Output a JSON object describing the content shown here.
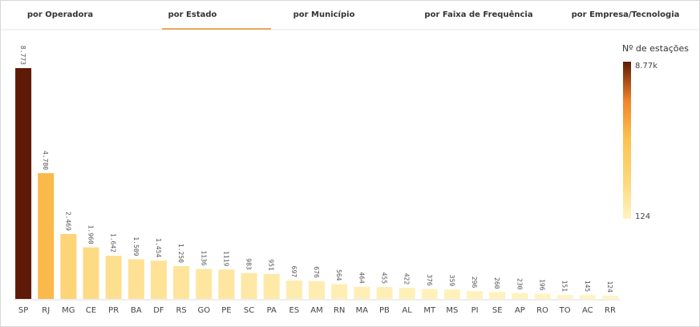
{
  "tabs": [
    "por Operadora",
    "por Estado",
    "por Município",
    "por Faixa de Frequência",
    "por Empresa/Tecnologia"
  ],
  "active_tab": 1,
  "chart_data": {
    "type": "bar",
    "categories": [
      "SP",
      "RJ",
      "MG",
      "CE",
      "PR",
      "BA",
      "DF",
      "RS",
      "GO",
      "PE",
      "SC",
      "PA",
      "ES",
      "AM",
      "RN",
      "MA",
      "PB",
      "AL",
      "MT",
      "MS",
      "PI",
      "SE",
      "AP",
      "RO",
      "TO",
      "AC",
      "RR"
    ],
    "values": [
      8773,
      4780,
      2469,
      1960,
      1642,
      1509,
      1454,
      1250,
      1136,
      1119,
      983,
      951,
      697,
      676,
      564,
      464,
      455,
      422,
      376,
      359,
      296,
      260,
      230,
      196,
      151,
      145,
      124
    ],
    "value_labels": [
      "8.773",
      "4.780",
      "2.469",
      "1.960",
      "1.642",
      "1.509",
      "1.454",
      "1.250",
      "1136",
      "1119",
      "983",
      "951",
      "697",
      "676",
      "564",
      "464",
      "455",
      "422",
      "376",
      "359",
      "296",
      "260",
      "230",
      "196",
      "151",
      "145",
      "124"
    ],
    "color_scale": [
      "#fff4c2",
      "#fdd67a",
      "#fbc451",
      "#f0852a",
      "#5e1a06"
    ],
    "legend": {
      "title": "Nº de estações",
      "max": {
        "value": 8773,
        "label": "8.77k"
      },
      "min": 124
    }
  }
}
